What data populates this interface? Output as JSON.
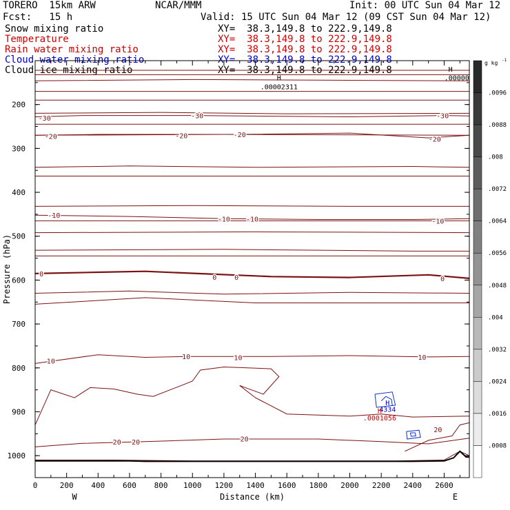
{
  "header": {
    "model": "TORERO  15km ARW",
    "org": "NCAR/MMM",
    "init": "Init: 00 UTC Sun 04 Mar 12",
    "fcst": "Fcst:   15 h",
    "valid": "Valid: 15 UTC Sun 04 Mar 12 (09 CST Sun 04 Mar 12)"
  },
  "legend": [
    {
      "label": "Snow mixing ratio",
      "xy": "XY=  38.3,149.8 to 222.9,149.8",
      "color": "#000000"
    },
    {
      "label": "Temperature",
      "xy": "XY=  38.3,149.8 to 222.9,149.8",
      "color": "#cc0000"
    },
    {
      "label": "Rain water mixing ratio",
      "xy": "XY=  38.3,149.8 to 222.9,149.8",
      "color": "#cc0000"
    },
    {
      "label": "Cloud water mixing ratio",
      "xy": "XY=  38.3,149.8 to 222.9,149.8",
      "color": "#0000cc"
    },
    {
      "label": "Cloud ice mixing ratio",
      "xy": "XY=  38.3,149.8 to 222.9,149.8",
      "color": "#000000"
    }
  ],
  "chart_data": {
    "type": "contour",
    "xlabel": "Distance (km)",
    "ylabel": "Pressure (hPa)",
    "xlim": [
      0,
      2760
    ],
    "ylim": [
      1050,
      100
    ],
    "x_ticks": [
      0,
      200,
      400,
      600,
      800,
      1000,
      1200,
      1400,
      1600,
      1800,
      2000,
      2200,
      2400,
      2600
    ],
    "y_ticks": [
      200,
      300,
      400,
      500,
      600,
      700,
      800,
      900,
      1000
    ],
    "x_endpoints": {
      "left": "W",
      "right": "E"
    },
    "temperature_contours": [
      {
        "value": 0,
        "labels": [
          "0",
          "0",
          "0",
          "0"
        ]
      },
      {
        "value": -10,
        "labels": [
          "-10",
          "-10",
          "-10",
          "-10"
        ]
      },
      {
        "value": -20,
        "labels": [
          "-20",
          "-20",
          "-20",
          "-20"
        ]
      },
      {
        "value": -30,
        "labels": [
          "-30",
          "-30",
          "-30"
        ]
      },
      {
        "value": 10,
        "labels": [
          "10",
          "10",
          "10",
          "10"
        ]
      },
      {
        "value": 20,
        "labels": [
          "20",
          "20",
          "20",
          "20"
        ]
      }
    ],
    "annotations": [
      {
        "text": "H",
        "x": 1550,
        "p": 145,
        "color": "#000000"
      },
      {
        "text": ".00002311",
        "x": 1550,
        "p": 165,
        "color": "#000000"
      },
      {
        "text": "H",
        "x": 2640,
        "p": 125,
        "color": "#000000"
      },
      {
        "text": ".00000",
        "x": 2680,
        "p": 145,
        "color": "#000000"
      },
      {
        "text": "H",
        "x": 2240,
        "p": 885,
        "color": "#0000cc"
      },
      {
        "text": "4334",
        "x": 2240,
        "p": 900,
        "color": "#0000cc"
      },
      {
        "text": "H",
        "x": 2190,
        "p": 903,
        "color": "#cc0000"
      },
      {
        "text": ".0001056",
        "x": 2190,
        "p": 920,
        "color": "#cc0000"
      }
    ],
    "colorbar": {
      "unit": "g kg",
      "unit_exponent": "-1",
      "levels": [
        ".0096",
        ".0088",
        ".008",
        ".0072",
        ".0064",
        ".0056",
        ".0048",
        ".004",
        ".0032",
        ".0024",
        ".0016",
        ".0008"
      ],
      "shades": [
        "#2a2a2a",
        "#3a3a3a",
        "#4a4a4a",
        "#5c5c5c",
        "#6e6e6e",
        "#808080",
        "#939393",
        "#a6a6a6",
        "#b9b9b9",
        "#cbcbcb",
        "#dcdcdc",
        "#ececec",
        "#ffffff"
      ]
    }
  }
}
